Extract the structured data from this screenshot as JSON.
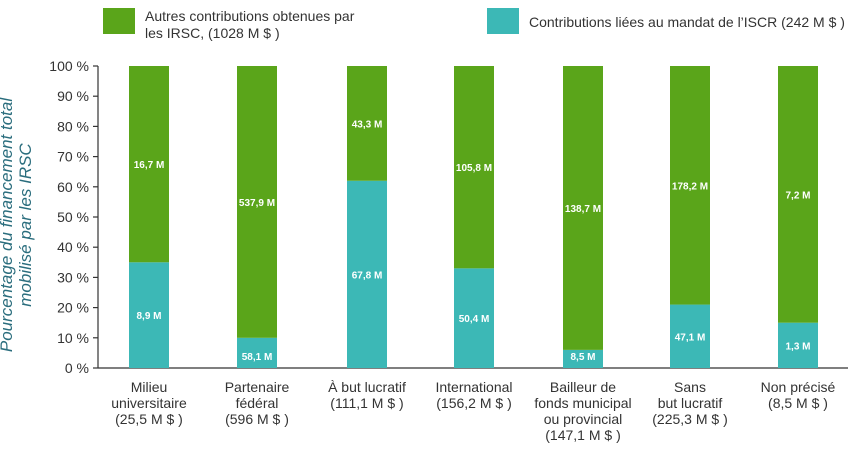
{
  "chart_data": {
    "type": "bar",
    "stacked": true,
    "ylabel": "Pourcentage du financement total mobilisé par les IRSC",
    "ylim": [
      0,
      100
    ],
    "yticks": [
      "0 %",
      "10 %",
      "20 %",
      "30 %",
      "40 %",
      "50 %",
      "60 %",
      "70 %",
      "80 %",
      "90 %",
      "100 %"
    ],
    "categories": [
      [
        "Milieu",
        "universitaire",
        "(25,5 M $ )"
      ],
      [
        "Partenaire",
        "fédéral",
        "(596 M $ )"
      ],
      [
        "À but lucratif",
        "(111,1 M $ )"
      ],
      [
        "International",
        "(156,2 M $ )"
      ],
      [
        "Bailleur de",
        "fonds municipal",
        "ou provincial",
        "(147,1 M $ )"
      ],
      [
        "Sans",
        "but lucratif",
        "(225,3 M $ )"
      ],
      [
        "Non précisé",
        "(8,5 M $ )"
      ]
    ],
    "series": [
      {
        "name": "Contributions liées au mandat de l’ISCR (242 M $ )",
        "color": "#3cb8b6",
        "percent": [
          35,
          10,
          62,
          33,
          6,
          21,
          15
        ],
        "labels": [
          "8,9 M",
          "58,1 M",
          "67,8 M",
          "50,4 M",
          "8,5 M",
          "47,1 M",
          "1,3 M"
        ]
      },
      {
        "name": "Autres contributions obtenues par les IRSC, (1028 M $ )",
        "color": "#5aa51a",
        "percent": [
          65,
          90,
          38,
          67,
          94,
          79,
          85
        ],
        "labels": [
          "16,7 M",
          "537,9 M",
          "43,3 M",
          "105,8 M",
          "138,7 M",
          "178,2 M",
          "7,2 M"
        ]
      }
    ],
    "legend": {
      "position": "top",
      "items": [
        {
          "line1": "Autres contributions obtenues par",
          "line2": "les IRSC, (1028 M $ )",
          "color": "#5aa51a"
        },
        {
          "line1": "Contributions liées au mandat de l’ISCR (242 M $ )",
          "line2": "",
          "color": "#3cb8b6"
        }
      ]
    },
    "grid": false
  }
}
